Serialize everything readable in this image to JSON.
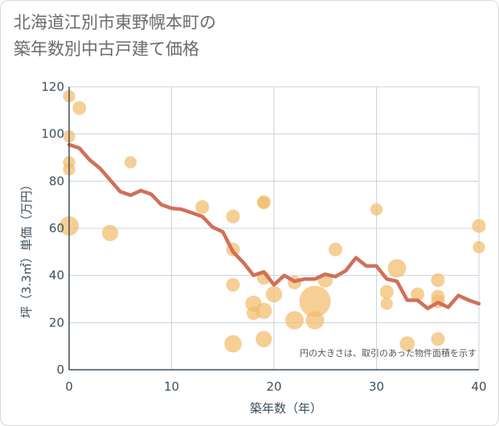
{
  "title": {
    "line1": "北海道江別市東野幌本町の",
    "line2": "築年数別中古戸建て価格"
  },
  "colors": {
    "line": "#d0705a",
    "bubble": "#f2bd6c",
    "grid": "#c8d3df",
    "axis": "#3d4f5c"
  },
  "chart_data": {
    "type": "scatter",
    "title": "北海道江別市東野幌本町の築年数別中古戸建て価格",
    "xlabel": "築年数（年）",
    "ylabel": "坪（3.3㎡）単価（万円）",
    "xlim": [
      0,
      40
    ],
    "ylim": [
      0,
      120
    ],
    "x_ticks": [
      "0",
      "10",
      "20",
      "30",
      "40"
    ],
    "y_ticks": [
      "0",
      "20",
      "40",
      "60",
      "80",
      "100",
      "120"
    ],
    "grid": true,
    "note": "円の大きさは、取引のあった物件面積を示す",
    "line_series": {
      "x": [
        0,
        1,
        2,
        3,
        4,
        5,
        6,
        7,
        8,
        9,
        10,
        11,
        12,
        13,
        14,
        15,
        16,
        17,
        18,
        19,
        20,
        21,
        22,
        23,
        24,
        25,
        26,
        27,
        28,
        29,
        30,
        31,
        32,
        33,
        34,
        35,
        36,
        37,
        38,
        39,
        40
      ],
      "y": [
        95.5,
        94,
        89,
        85.5,
        80.5,
        75.5,
        74,
        76,
        74.5,
        70,
        68.5,
        68,
        66.5,
        65,
        60.5,
        58.5,
        50,
        45.5,
        40,
        41.5,
        36,
        40,
        37.5,
        38.5,
        38.5,
        40.5,
        39.5,
        42,
        47.5,
        44,
        44,
        38.5,
        37.5,
        29.5,
        29.5,
        26,
        28.5,
        26.5,
        31.5,
        29.5,
        28
      ]
    },
    "bubbles": [
      {
        "x": 0,
        "y": 116,
        "size": 2
      },
      {
        "x": 0,
        "y": 99,
        "size": 2
      },
      {
        "x": 0,
        "y": 88,
        "size": 2
      },
      {
        "x": 0,
        "y": 85,
        "size": 2
      },
      {
        "x": 0,
        "y": 61,
        "size": 5
      },
      {
        "x": 1,
        "y": 111,
        "size": 2.5
      },
      {
        "x": 4,
        "y": 58,
        "size": 3.5
      },
      {
        "x": 6,
        "y": 88,
        "size": 2
      },
      {
        "x": 13,
        "y": 69,
        "size": 2.5
      },
      {
        "x": 16,
        "y": 65,
        "size": 2.5
      },
      {
        "x": 16,
        "y": 51,
        "size": 2.5
      },
      {
        "x": 16,
        "y": 36,
        "size": 2.5
      },
      {
        "x": 16,
        "y": 11,
        "size": 4
      },
      {
        "x": 18,
        "y": 28,
        "size": 3.5
      },
      {
        "x": 18,
        "y": 24,
        "size": 2.5
      },
      {
        "x": 19,
        "y": 71,
        "size": 2.5
      },
      {
        "x": 19,
        "y": 71,
        "size": 2
      },
      {
        "x": 19,
        "y": 39,
        "size": 2.5
      },
      {
        "x": 19,
        "y": 25,
        "size": 3.5
      },
      {
        "x": 19,
        "y": 13,
        "size": 3.5
      },
      {
        "x": 20,
        "y": 32,
        "size": 3.5
      },
      {
        "x": 22,
        "y": 37,
        "size": 2.5
      },
      {
        "x": 22,
        "y": 21,
        "size": 4.5
      },
      {
        "x": 24,
        "y": 29,
        "size": 13
      },
      {
        "x": 24,
        "y": 21,
        "size": 4.5
      },
      {
        "x": 25,
        "y": 38,
        "size": 3
      },
      {
        "x": 26,
        "y": 51,
        "size": 2.5
      },
      {
        "x": 30,
        "y": 68,
        "size": 2
      },
      {
        "x": 31,
        "y": 33,
        "size": 2.5
      },
      {
        "x": 31,
        "y": 28,
        "size": 2
      },
      {
        "x": 32,
        "y": 43,
        "size": 4.5
      },
      {
        "x": 33,
        "y": 11,
        "size": 3
      },
      {
        "x": 34,
        "y": 32,
        "size": 2.5
      },
      {
        "x": 36,
        "y": 38,
        "size": 2.5
      },
      {
        "x": 36,
        "y": 31,
        "size": 2.5
      },
      {
        "x": 36,
        "y": 29,
        "size": 2.5
      },
      {
        "x": 36,
        "y": 13,
        "size": 2.5
      },
      {
        "x": 40,
        "y": 61,
        "size": 2.5
      },
      {
        "x": 40,
        "y": 52,
        "size": 2
      }
    ]
  }
}
